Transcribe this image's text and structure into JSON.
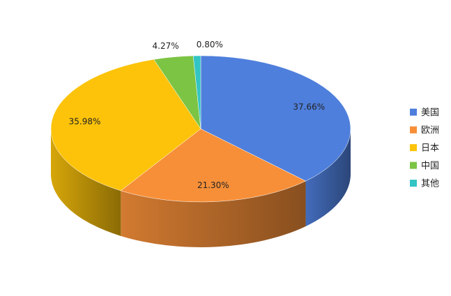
{
  "chart_data": {
    "type": "pie",
    "categories": [
      "美国",
      "欧洲",
      "日本",
      "中国",
      "其他"
    ],
    "values": [
      37.66,
      21.3,
      35.98,
      4.27,
      0.8
    ],
    "value_labels": [
      "37.66%",
      "21.30%",
      "35.98%",
      "4.27%",
      "0.80%"
    ],
    "colors": [
      "#4f7fdc",
      "#f78f38",
      "#fcc30a",
      "#7cc444",
      "#33c4c4"
    ],
    "legend": "right"
  }
}
